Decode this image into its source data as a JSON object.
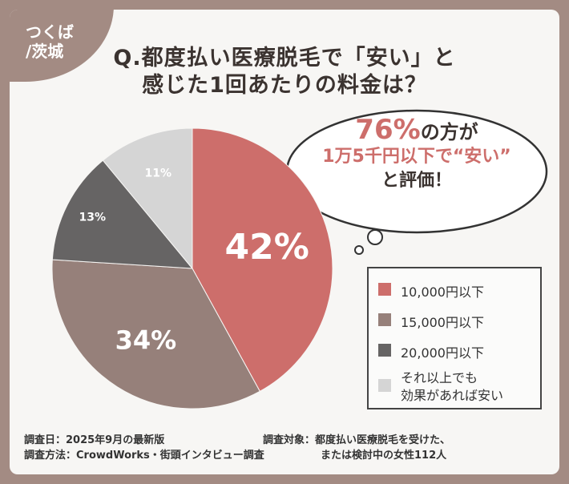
{
  "badge": {
    "line1": "つくば",
    "line2": "/茨城"
  },
  "title": {
    "line1": "Q.都度払い医療脱毛で「安い」と",
    "line2": "感じた1回あたりの料金は？"
  },
  "callout": {
    "pct": "76%",
    "after_pct": "の方が",
    "line2": "1万5千円以下で“安い”",
    "line3": "と評価！"
  },
  "colors": {
    "c1": "#cd6e6b",
    "c2": "#96807a",
    "c3": "#666464",
    "c4": "#d5d5d5"
  },
  "chart_data": {
    "type": "pie",
    "categories": [
      "10,000円以下",
      "15,000円以下",
      "20,000円以下",
      "それ以上でも効果があれば安い"
    ],
    "values": [
      42,
      34,
      13,
      11
    ],
    "labels": [
      "42%",
      "34%",
      "13%",
      "11%"
    ],
    "legend_position": "right"
  },
  "legend": [
    {
      "label": "10,000円以下"
    },
    {
      "label": "15,000円以下"
    },
    {
      "label": "20,000円以下"
    },
    {
      "label": "それ以上でも",
      "label2": "効果があれば安い"
    }
  ],
  "footer": {
    "date": "調査日：2025年9月の最新版",
    "method": "調査方法：CrowdWorks・街頭インタビュー調査",
    "target1": "調査対象：都度払い医療脱毛を受けた、",
    "target2": "または検討中の女性112人"
  }
}
